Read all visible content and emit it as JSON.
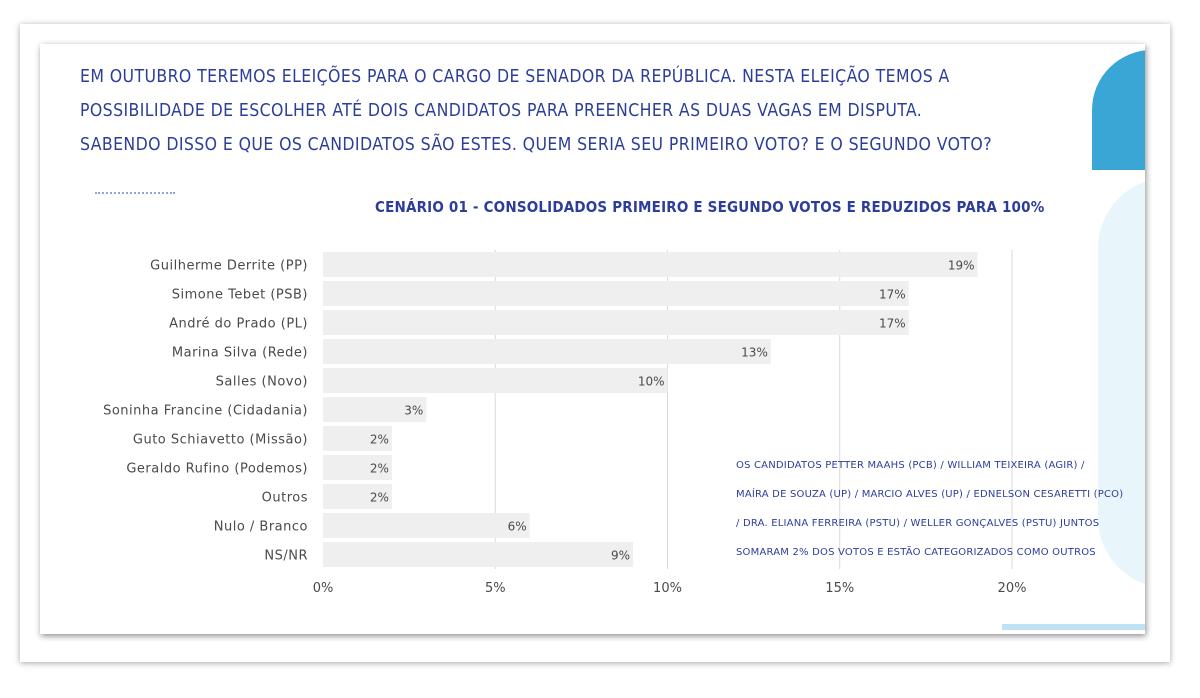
{
  "question_lines": [
    "EM OUTUBRO TEREMOS ELEIÇÕES PARA O CARGO DE SENADOR DA REPÚBLICA. NESTA ELEIÇÃO TEMOS A",
    "POSSIBILIDADE DE ESCOLHER ATÉ DOIS CANDIDATOS PARA PREENCHER AS DUAS VAGAS EM DISPUTA.",
    "SABENDO DISSO E QUE OS CANDIDATOS SÃO ESTES. QUEM SERIA SEU PRIMEIRO VOTO? E O SEGUNDO VOTO?"
  ],
  "note_lines": [
    "OS CANDIDATOS PETTER MAAHS (PCB) / WILLIAM TEIXEIRA (AGIR) /",
    "MAÍRA DE SOUZA (UP) / MARCIO ALVES (UP) / EDNELSON CESARETTI (PCO)",
    "/ DRA. ELIANA FERREIRA (PSTU) / WELLER GONÇALVES (PSTU) JUNTOS",
    "SOMARAM 2% DOS VOTOS E ESTÃO CATEGORIZADOS COMO OUTROS"
  ],
  "colors": {
    "text_blue": "#2d3e9a",
    "bar_fill": "#efefef",
    "grid": "#d9d9d9",
    "label_gray": "#4a4a4a"
  },
  "chart_data": {
    "type": "bar",
    "orientation": "horizontal",
    "title": "CENÁRIO 01 - CONSOLIDADOS PRIMEIRO E SEGUNDO VOTOS E REDUZIDOS PARA 100%",
    "categories": [
      "Guilherme Derrite (PP)",
      "Simone Tebet (PSB)",
      "André do Prado (PL)",
      "Marina Silva (Rede)",
      "Salles (Novo)",
      "Soninha Francine (Cidadania)",
      "Guto Schiavetto (Missão)",
      "Geraldo Rufino (Podemos)",
      "Outros",
      "Nulo / Branco",
      "NS/NR"
    ],
    "values": [
      19,
      17,
      17,
      13,
      10,
      3,
      2,
      2,
      2,
      6,
      9
    ],
    "value_labels": [
      "19%",
      "17%",
      "17%",
      "13%",
      "10%",
      "3%",
      "2%",
      "2%",
      "2%",
      "6%",
      "9%"
    ],
    "xlim": [
      0,
      20
    ],
    "xticks": [
      0,
      5,
      10,
      15,
      20
    ],
    "xtick_labels": [
      "0%",
      "5%",
      "10%",
      "15%",
      "20%"
    ],
    "grid": true,
    "legend": "none"
  }
}
